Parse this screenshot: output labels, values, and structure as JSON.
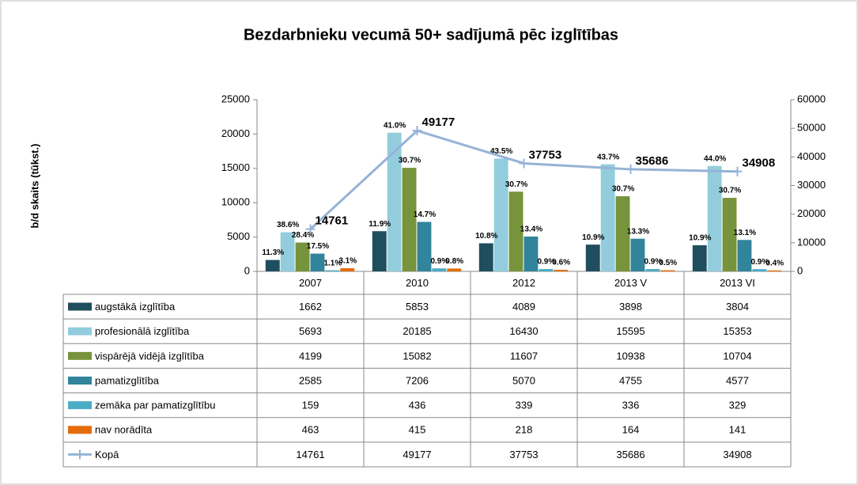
{
  "chart_data": {
    "type": "bar",
    "title": "Bezdarbnieku vecumā 50+  sadījumā pēc izglītības",
    "y_label": "b/d skaits (tūkst.)",
    "categories": [
      "2007",
      "2010",
      "2012",
      "2013 V",
      "2013 VI"
    ],
    "ylim": [
      0,
      25000
    ],
    "yticks": [
      0,
      5000,
      10000,
      15000,
      20000,
      25000
    ],
    "y2lim": [
      0,
      60000
    ],
    "y2ticks": [
      0,
      10000,
      20000,
      30000,
      40000,
      50000,
      60000
    ],
    "series": [
      {
        "name": "augstākā izglītība",
        "color": "#1f4e5f",
        "values": [
          1662,
          5853,
          4089,
          3898,
          3804
        ],
        "share_labels": [
          "11.3%",
          "11.9%",
          "10.8%",
          "10.9%",
          "10.9%"
        ]
      },
      {
        "name": "profesionālā izglītība",
        "color": "#93cddd",
        "values": [
          5693,
          20185,
          16430,
          15595,
          15353
        ],
        "share_labels": [
          "38.6%",
          "41.0%",
          "43.5%",
          "43.7%",
          "44.0%"
        ]
      },
      {
        "name": "vispārējā vidējā izglītība",
        "color": "#77933c",
        "values": [
          4199,
          15082,
          11607,
          10938,
          10704
        ],
        "share_labels": [
          "28.4%",
          "30.7%",
          "30.7%",
          "30.7%",
          "30.7%"
        ]
      },
      {
        "name": "pamatizglītība",
        "color": "#31849b",
        "values": [
          2585,
          7206,
          5070,
          4755,
          4577
        ],
        "share_labels": [
          "17.5%",
          "14.7%",
          "13.4%",
          "13.3%",
          "13.1%"
        ]
      },
      {
        "name": "zemāka par pamatizglītību",
        "color": "#4bacc6",
        "values": [
          159,
          436,
          339,
          336,
          329
        ],
        "share_labels": [
          "1.1%",
          "0.9%",
          "0.9%",
          "0.9%",
          "0.9%"
        ]
      },
      {
        "name": "nav norādīta",
        "color": "#e46c0a",
        "values": [
          463,
          415,
          218,
          164,
          141
        ],
        "share_labels": [
          "3.1%",
          "0.8%",
          "0.6%",
          "0.5%",
          "0.4%"
        ]
      },
      {
        "name": "Kopā",
        "type": "line",
        "axis": "y2",
        "color": "#95b3d7",
        "values": [
          14761,
          49177,
          37753,
          35686,
          34908
        ]
      }
    ]
  }
}
